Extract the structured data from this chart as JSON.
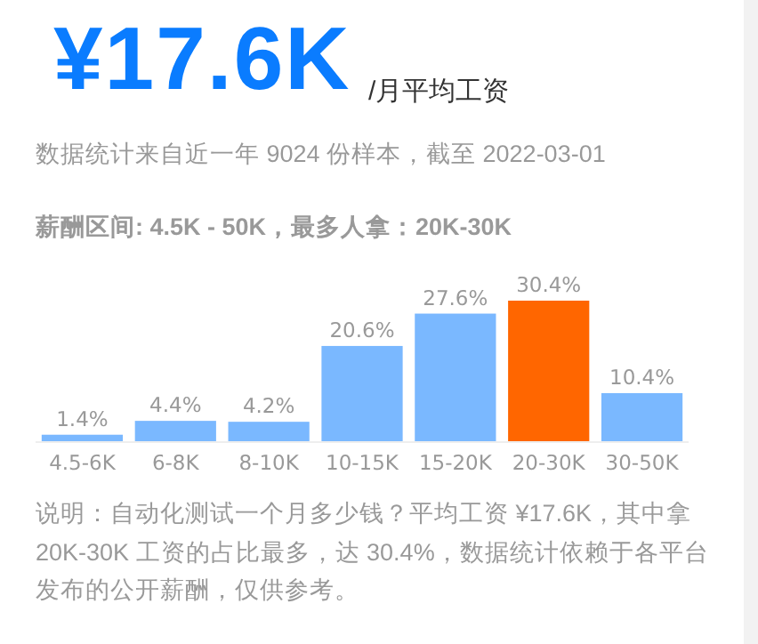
{
  "chart_data": {
    "type": "bar",
    "title": "¥17.6K",
    "subtitle": "/月平均工资",
    "categories": [
      "4.5-6K",
      "6-8K",
      "8-10K",
      "10-15K",
      "15-20K",
      "20-30K",
      "30-50K"
    ],
    "values": [
      1.4,
      4.4,
      4.2,
      20.6,
      27.6,
      30.4,
      10.4
    ],
    "value_labels": [
      "1.4%",
      "4.4%",
      "4.2%",
      "20.6%",
      "27.6%",
      "30.4%",
      "10.4%"
    ],
    "colors": [
      "#7ab8ff",
      "#7ab8ff",
      "#7ab8ff",
      "#7ab8ff",
      "#7ab8ff",
      "#ff6600",
      "#7ab8ff"
    ],
    "annotations": [
      "数据统计来自近一年 9024 份样本，截至 2022-03-01",
      "**薪酬区间: 4.5K - 50K，最多人拿：20K-30K**",
      "说明：自动化测试一个月多少钱？平均工资 ¥17.6K，其中拿 20K-30K 工资的占比最多，达 30.4%，数据统计依赖于各平台发布的公开薪酬，仅供参考。"
    ]
  }
}
